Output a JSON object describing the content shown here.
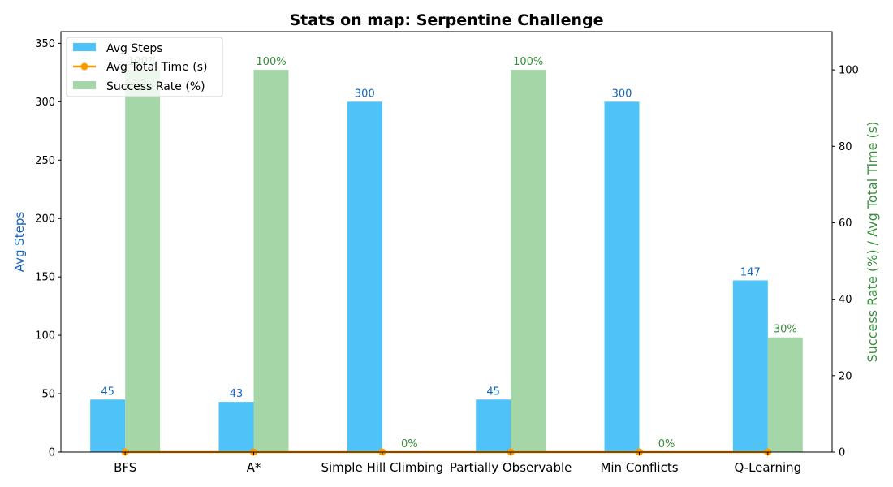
{
  "chart_data": {
    "type": "bar",
    "title": "Stats on map: Serpentine Challenge",
    "categories": [
      "BFS",
      "A*",
      "Simple Hill Climbing",
      "Partially Observable",
      "Min Conflicts",
      "Q-Learning"
    ],
    "series": [
      {
        "name": "Avg Steps",
        "axis": "left",
        "kind": "bar",
        "color": "#4fc3f7",
        "label_color": "#1565c0",
        "values": [
          45,
          43,
          300,
          45,
          300,
          147
        ],
        "labels": [
          "45",
          "43",
          "300",
          "45",
          "300",
          "147"
        ]
      },
      {
        "name": "Avg Total Time (s)",
        "axis": "right",
        "kind": "line",
        "color": "#ff9800",
        "values": [
          0,
          0,
          0,
          0,
          0,
          0
        ]
      },
      {
        "name": "Success Rate (%)",
        "axis": "right",
        "kind": "bar",
        "color": "#a5d6a7",
        "label_color": "#388e3c",
        "values": [
          100,
          100,
          0,
          100,
          0,
          30
        ],
        "labels": [
          "100%",
          "100%",
          "0%",
          "100%",
          "0%",
          "30%"
        ]
      }
    ],
    "ylabel_left": "Avg Steps",
    "ylabel_right": "Success Rate (%) / Avg Total Time (s)",
    "ylim_left": [
      0,
      360
    ],
    "ylim_right": [
      0,
      110
    ],
    "yticks_left": [
      "0",
      "50",
      "100",
      "150",
      "200",
      "250",
      "300",
      "350"
    ],
    "yticks_right": [
      "0",
      "20",
      "40",
      "60",
      "80",
      "100"
    ],
    "grid": false,
    "legend_position": "top-left"
  }
}
